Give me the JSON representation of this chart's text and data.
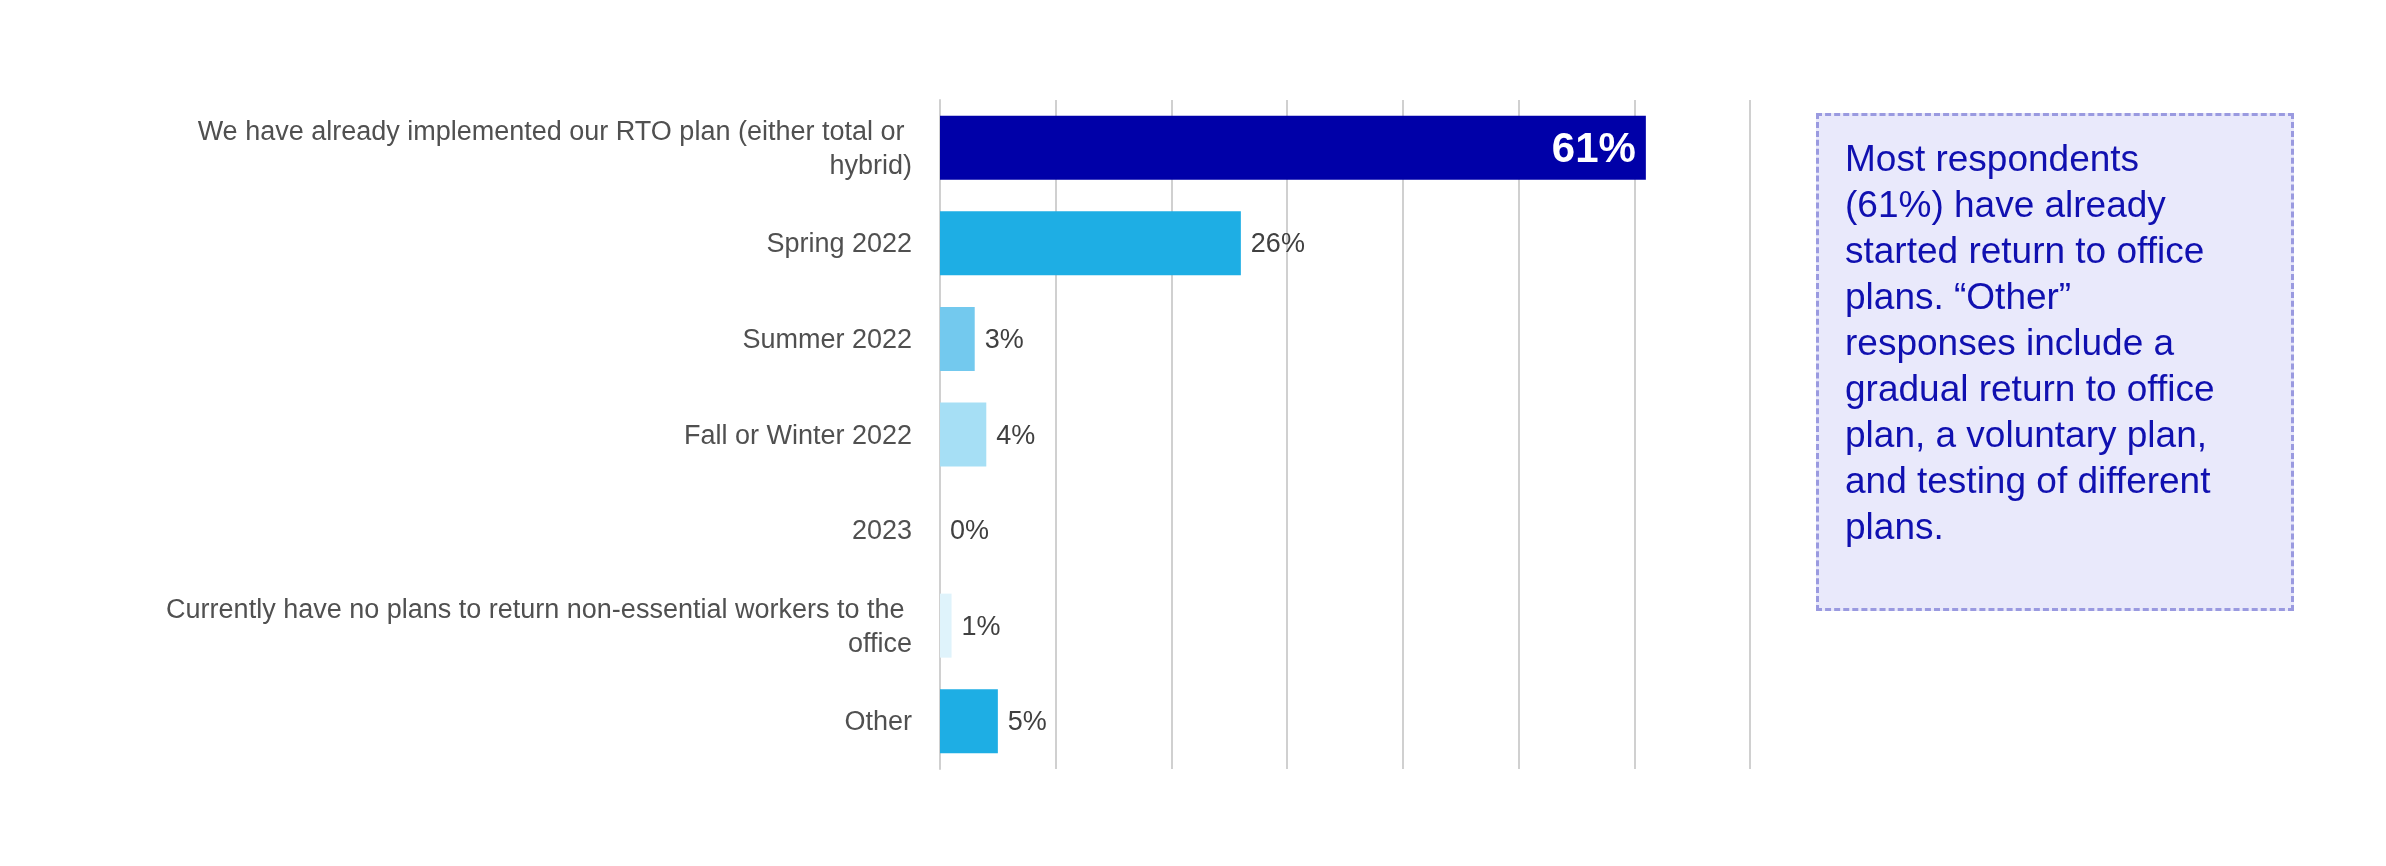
{
  "chart_data": {
    "type": "bar",
    "orientation": "horizontal",
    "categories": [
      "We have already implemented our RTO plan (either total or hybrid)",
      "Spring 2022",
      "Summer 2022",
      "Fall or Winter 2022",
      "2023",
      "Currently have no plans to return non-essential workers to the office",
      "Other"
    ],
    "values": [
      61,
      26,
      3,
      4,
      0,
      1,
      5
    ],
    "value_labels": [
      "61%",
      "26%",
      "3%",
      "4%",
      "0%",
      "1%",
      "5%"
    ],
    "colors": [
      "#0000a8",
      "#1eaee4",
      "#73c9ee",
      "#a6dff5",
      "#a6dff5",
      "#dff3fb",
      "#1eaee4"
    ],
    "xlim": [
      0,
      70
    ],
    "xticks": [
      {
        "value": 0,
        "label": null
      },
      {
        "value": 10,
        "label": null
      },
      {
        "value": 20,
        "label": null
      },
      {
        "value": 30,
        "label": null
      },
      {
        "value": 40,
        "label": null
      },
      {
        "value": 50,
        "label": null
      },
      {
        "value": 60,
        "label": null
      },
      {
        "value": 70,
        "label": null
      }
    ],
    "tick_labels": "y",
    "grid": "x",
    "annotations": [
      "Most respondents (61%) have already started return to office plans. “Other” responses include a gradual return to office plan, a voluntary plan, and testing of different plans."
    ]
  }
}
